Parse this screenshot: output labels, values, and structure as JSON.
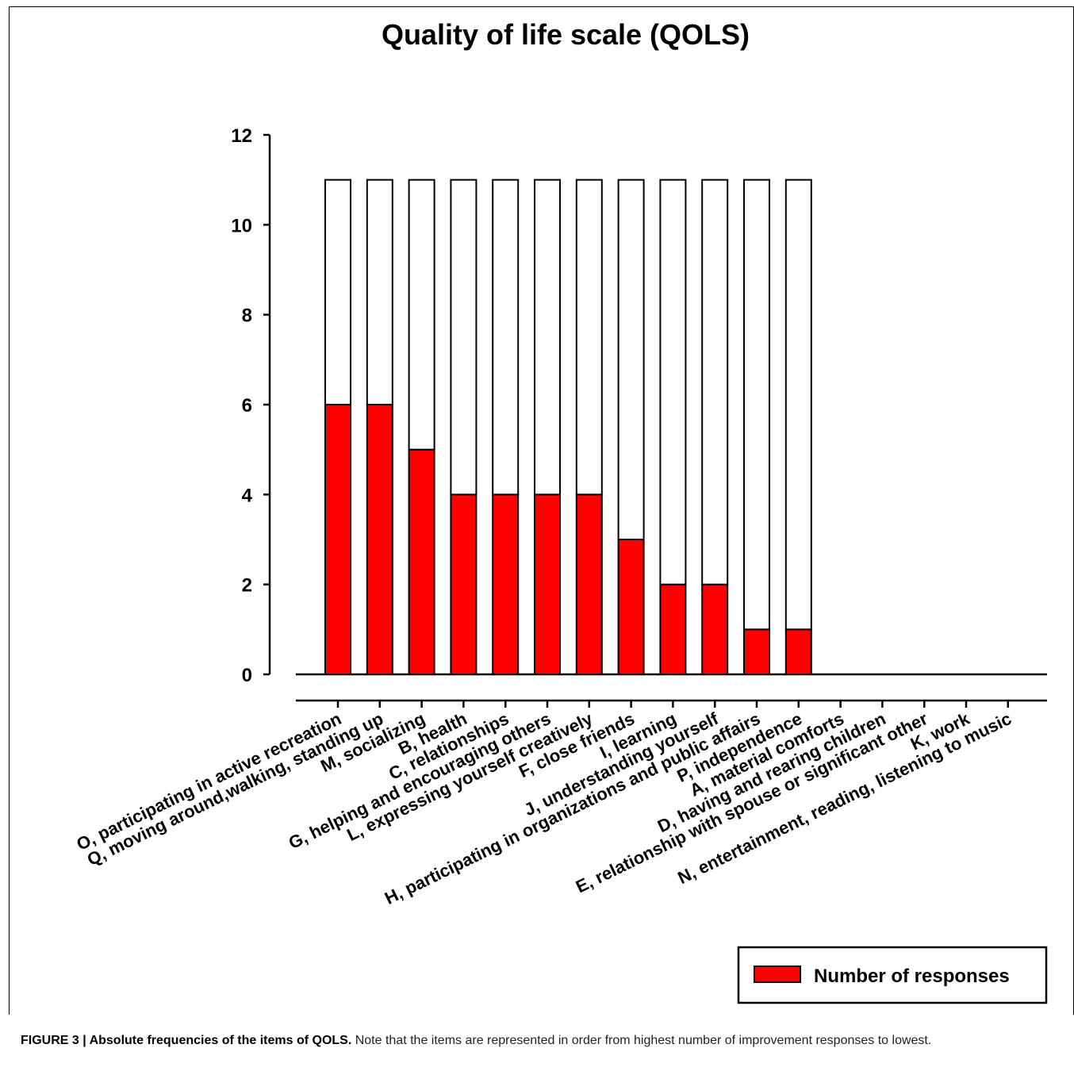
{
  "chart_data": {
    "type": "bar",
    "stacked": true,
    "title": "Quality of life scale (QOLS)",
    "xlabel": "",
    "ylabel": "",
    "ylim": [
      0,
      12
    ],
    "yticks": [
      0,
      2,
      4,
      6,
      8,
      10,
      12
    ],
    "grid": false,
    "legend": {
      "position": "bottom-right",
      "entries": [
        "Number of responses"
      ]
    },
    "categories": [
      "O, participating in active recreation",
      "Q, moving around,walking, standing up",
      "M, socializing",
      "B, health",
      "C, relationships",
      "G, helping and encouraging others",
      "L, expressing yourself creatively",
      "F, close friends",
      "I, learning",
      "J, understanding yourself",
      "H, participating in organizations and public affairs",
      "P, independence",
      "A, material comforts",
      "D, having and rearing children",
      "E, relationship with spouse or significant other",
      "K, work",
      "N, entertainment, reading, listening to music"
    ],
    "series": [
      {
        "name": "Number of responses",
        "color": "#ff0000",
        "values": [
          6,
          6,
          5,
          4,
          4,
          4,
          4,
          3,
          2,
          2,
          1,
          1,
          0,
          0,
          0,
          0,
          0
        ]
      },
      {
        "color": "#ffffff",
        "values": [
          5,
          5,
          6,
          7,
          7,
          7,
          7,
          8,
          9,
          9,
          10,
          10,
          0,
          0,
          0,
          0,
          0
        ]
      }
    ]
  },
  "caption": {
    "label": "FIGURE 3 | Absolute frequencies of the items of QOLS.",
    "text": " Note that the items are represented in order from highest number of improvement responses to lowest."
  }
}
